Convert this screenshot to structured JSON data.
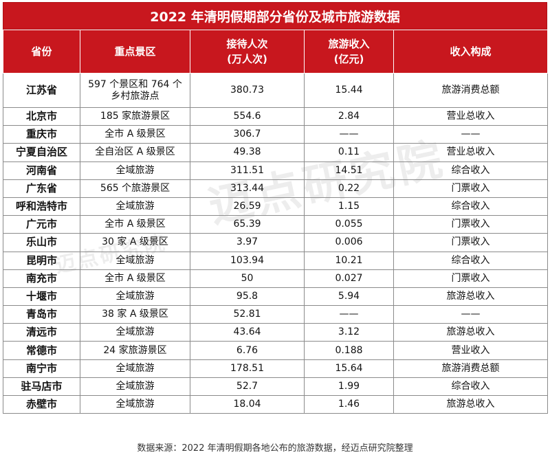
{
  "title": "2022 年清明假期部分省份及城市旅游数据",
  "headers": {
    "province": "省份",
    "scenic": "重点景区",
    "visitors": "接待人次",
    "visitors_unit": "(万人次)",
    "revenue": "旅游收入",
    "revenue_unit": "(亿元)",
    "composition": "收入构成"
  },
  "rows": [
    {
      "province": "江苏省",
      "scenic_line1": "597 个景区和 764 个",
      "scenic_line2": "乡村旅游点",
      "visitors": "380.73",
      "revenue": "15.44",
      "composition": "旅游消费总额"
    },
    {
      "province": "北京市",
      "scenic": "185 家旅游景区",
      "visitors": "554.6",
      "revenue": "2.84",
      "composition": "营业总收入"
    },
    {
      "province": "重庆市",
      "scenic": "全市 A 级景区",
      "visitors": "306.7",
      "revenue": "——",
      "composition": "——"
    },
    {
      "province": "宁夏自治区",
      "scenic": "全自治区 A 级景区",
      "visitors": "49.38",
      "revenue": "0.11",
      "composition": "营业总收入"
    },
    {
      "province": "河南省",
      "scenic": "全域旅游",
      "visitors": "311.51",
      "revenue": "14.51",
      "composition": "综合收入"
    },
    {
      "province": "广东省",
      "scenic": "565 个旅游景区",
      "visitors": "313.44",
      "revenue": "0.22",
      "composition": "门票收入"
    },
    {
      "province": "呼和浩特市",
      "scenic": "全域旅游",
      "visitors": "26.59",
      "revenue": "1.15",
      "composition": "综合收入"
    },
    {
      "province": "广元市",
      "scenic": "全市 A 级景区",
      "visitors": "65.39",
      "revenue": "0.055",
      "composition": "门票收入"
    },
    {
      "province": "乐山市",
      "scenic": "30 家 A 级景区",
      "visitors": "3.97",
      "revenue": "0.006",
      "composition": "门票收入"
    },
    {
      "province": "昆明市",
      "scenic": "全域旅游",
      "visitors": "103.94",
      "revenue": "10.21",
      "composition": "综合收入"
    },
    {
      "province": "南充市",
      "scenic": "全市 A 级景区",
      "visitors": "50",
      "revenue": "0.027",
      "composition": "门票收入"
    },
    {
      "province": "十堰市",
      "scenic": "全域旅游",
      "visitors": "95.8",
      "revenue": "5.94",
      "composition": "旅游总收入"
    },
    {
      "province": "青岛市",
      "scenic": "38 家 A 级景区",
      "visitors": "52.81",
      "revenue": "——",
      "composition": "——"
    },
    {
      "province": "清远市",
      "scenic": "全域旅游",
      "visitors": "43.64",
      "revenue": "3.12",
      "composition": "旅游总收入"
    },
    {
      "province": "常德市",
      "scenic": "24 家旅游景区",
      "visitors": "6.76",
      "revenue": "0.188",
      "composition": "营业收入"
    },
    {
      "province": "南宁市",
      "scenic": "全域旅游",
      "visitors": "178.51",
      "revenue": "15.64",
      "composition": "旅游消费总额"
    },
    {
      "province": "驻马店市",
      "scenic": "全域旅游",
      "visitors": "52.7",
      "revenue": "1.99",
      "composition": "综合收入"
    },
    {
      "province": "赤壁市",
      "scenic": "全域旅游",
      "visitors": "18.04",
      "revenue": "1.46",
      "composition": "旅游总收入"
    }
  ],
  "source": "数据来源：2022 年清明假期各地公布的旅游数据，经迈点研究院整理",
  "watermark": "迈点研究院",
  "watermark_small": "迈点研究院",
  "colors": {
    "header_red": "#c8171e",
    "grid": "#8a8a8a"
  }
}
